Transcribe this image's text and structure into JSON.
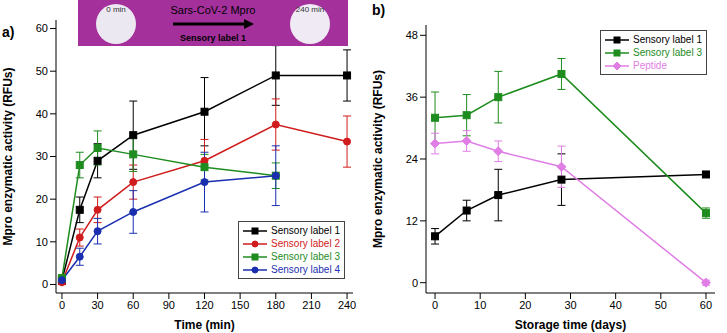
{
  "chart_data": [
    {
      "type": "line",
      "title": "a)",
      "x_label": "Time (min)",
      "y_label": "Mpro enzymatic activity (RFUs)",
      "xlim": [
        -5,
        245
      ],
      "xticks": [
        0,
        30,
        60,
        90,
        120,
        150,
        180,
        210,
        240
      ],
      "ylim": [
        -2,
        62
      ],
      "yticks": [
        0,
        10,
        20,
        30,
        40,
        50,
        60
      ],
      "legend": "lower right",
      "annotations": [
        "0 min",
        "Sars-CoV-2 Mpro",
        "240 min",
        "Sensory label 1"
      ],
      "series": [
        {
          "name": "Sensory label 1",
          "color": "#000000",
          "marker": "square",
          "x": [
            0,
            15,
            30,
            60,
            120,
            180,
            240
          ],
          "values": [
            1,
            17.5,
            29,
            35,
            40.5,
            49,
            49
          ],
          "errors": [
            0.5,
            3,
            4,
            8,
            8,
            7,
            6
          ]
        },
        {
          "name": "Sensory label 2",
          "color": "#d01c1c",
          "marker": "circle",
          "x": [
            0,
            15,
            30,
            60,
            120,
            180,
            240
          ],
          "values": [
            0.5,
            11,
            17.5,
            24,
            29,
            37.5,
            33.5
          ],
          "errors": [
            0.5,
            2,
            3,
            4,
            5,
            6,
            6
          ]
        },
        {
          "name": "Sensory label 3",
          "color": "#1e8c1e",
          "marker": "square",
          "x": [
            0,
            15,
            30,
            60,
            120,
            180
          ],
          "values": [
            1.5,
            28,
            32,
            30.5,
            27.5,
            25.5
          ],
          "errors": [
            0.5,
            3,
            4,
            4,
            3,
            3
          ]
        },
        {
          "name": "Sensory label 4",
          "color": "#1a2fb0",
          "marker": "circle",
          "x": [
            0,
            15,
            30,
            60,
            120,
            180
          ],
          "values": [
            1,
            6.5,
            12.5,
            17,
            24,
            25.5
          ],
          "errors": [
            0.5,
            2,
            3,
            5,
            7,
            7
          ]
        }
      ]
    },
    {
      "type": "line",
      "title": "b)",
      "x_label": "Storage time (days)",
      "y_label": "Mpro enzymatic activity (RFUs)",
      "xlim": [
        -2,
        62
      ],
      "xticks": [
        0,
        10,
        20,
        30,
        40,
        50,
        60
      ],
      "ylim": [
        -2,
        50
      ],
      "yticks": [
        0,
        12,
        24,
        36,
        48
      ],
      "legend": "upper right",
      "series": [
        {
          "name": "Sensory label 1",
          "color": "#000000",
          "marker": "square",
          "x": [
            0,
            7,
            14,
            28,
            60
          ],
          "values": [
            9,
            14,
            17,
            20,
            21
          ],
          "errors": [
            1.5,
            2,
            5,
            5,
            0.5
          ]
        },
        {
          "name": "Sensory label 3",
          "color": "#1e8c1e",
          "marker": "square",
          "x": [
            0,
            7,
            14,
            28,
            60
          ],
          "values": [
            32,
            32.5,
            36,
            40.5,
            13.5
          ],
          "errors": [
            5,
            4,
            5,
            3,
            1
          ]
        },
        {
          "name": "Peptide",
          "color": "#e07ee6",
          "marker": "diamond",
          "x": [
            0,
            7,
            14,
            28,
            60
          ],
          "values": [
            27,
            27.5,
            25.5,
            22.5,
            0
          ],
          "errors": [
            2,
            2,
            2,
            4,
            0.5
          ]
        }
      ]
    }
  ]
}
